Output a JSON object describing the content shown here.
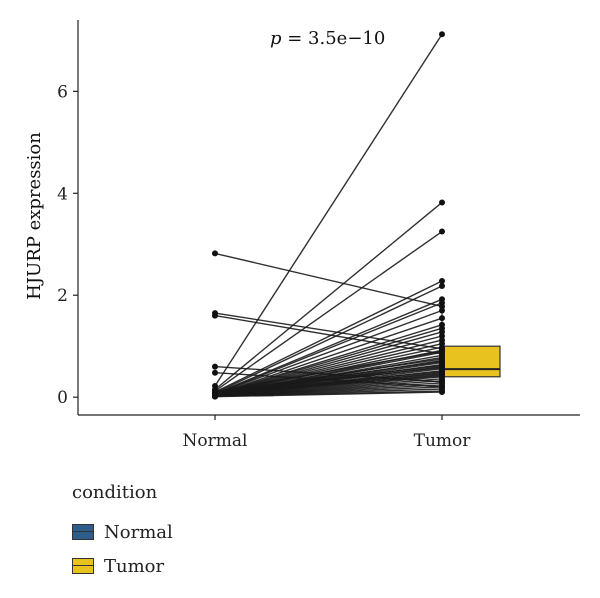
{
  "chart_data": {
    "type": "paired-line-boxplot",
    "annotation": "p = 3.5e−10",
    "annotation_italic": "p",
    "annotation_rest": " = 3.5e−10",
    "xlabel": "",
    "ylabel": "HJURP expression",
    "categories": [
      "Normal",
      "Tumor"
    ],
    "ylim": [
      -0.35,
      7.4
    ],
    "yticks": [
      0,
      2,
      4,
      6
    ],
    "box": {
      "Normal": {
        "q1": 0.03,
        "median": 0.06,
        "q3": 0.09,
        "whisker_low": 0.0,
        "whisker_high": 0.12,
        "color": "#2f5d8a"
      },
      "Tumor": {
        "q1": 0.4,
        "median": 0.55,
        "q3": 1.0,
        "whisker_low": 0.1,
        "whisker_high": 1.8,
        "color": "#e8c21e"
      }
    },
    "pairs": [
      [
        2.82,
        1.78
      ],
      [
        1.65,
        0.95
      ],
      [
        1.6,
        0.85
      ],
      [
        0.6,
        0.3
      ],
      [
        0.48,
        0.2
      ],
      [
        0.22,
        7.12
      ],
      [
        0.15,
        3.82
      ],
      [
        0.12,
        3.25
      ],
      [
        0.1,
        2.28
      ],
      [
        0.08,
        2.18
      ],
      [
        0.07,
        1.92
      ],
      [
        0.06,
        1.85
      ],
      [
        0.06,
        1.7
      ],
      [
        0.05,
        1.55
      ],
      [
        0.05,
        1.42
      ],
      [
        0.05,
        1.35
      ],
      [
        0.04,
        1.28
      ],
      [
        0.04,
        1.2
      ],
      [
        0.04,
        1.12
      ],
      [
        0.04,
        1.05
      ],
      [
        0.04,
        0.98
      ],
      [
        0.03,
        0.92
      ],
      [
        0.03,
        0.88
      ],
      [
        0.03,
        0.82
      ],
      [
        0.03,
        0.78
      ],
      [
        0.03,
        0.72
      ],
      [
        0.03,
        0.68
      ],
      [
        0.03,
        0.64
      ],
      [
        0.03,
        0.6
      ],
      [
        0.02,
        0.56
      ],
      [
        0.02,
        0.52
      ],
      [
        0.02,
        0.48
      ],
      [
        0.02,
        0.44
      ],
      [
        0.02,
        0.4
      ],
      [
        0.02,
        0.36
      ],
      [
        0.02,
        0.32
      ],
      [
        0.02,
        0.28
      ],
      [
        0.02,
        0.24
      ],
      [
        0.02,
        0.2
      ],
      [
        0.02,
        0.16
      ],
      [
        0.02,
        0.12
      ],
      [
        0.01,
        0.1
      ],
      [
        0.1,
        0.62
      ],
      [
        0.09,
        0.58
      ],
      [
        0.08,
        0.5
      ],
      [
        0.07,
        0.46
      ],
      [
        0.06,
        0.42
      ],
      [
        0.09,
        0.75
      ],
      [
        0.08,
        0.7
      ],
      [
        0.11,
        0.9
      ]
    ],
    "legend": {
      "title": "condition",
      "items": [
        {
          "label": "Normal",
          "color": "#2f5d8a"
        },
        {
          "label": "Tumor",
          "color": "#e8c21e"
        }
      ]
    }
  }
}
